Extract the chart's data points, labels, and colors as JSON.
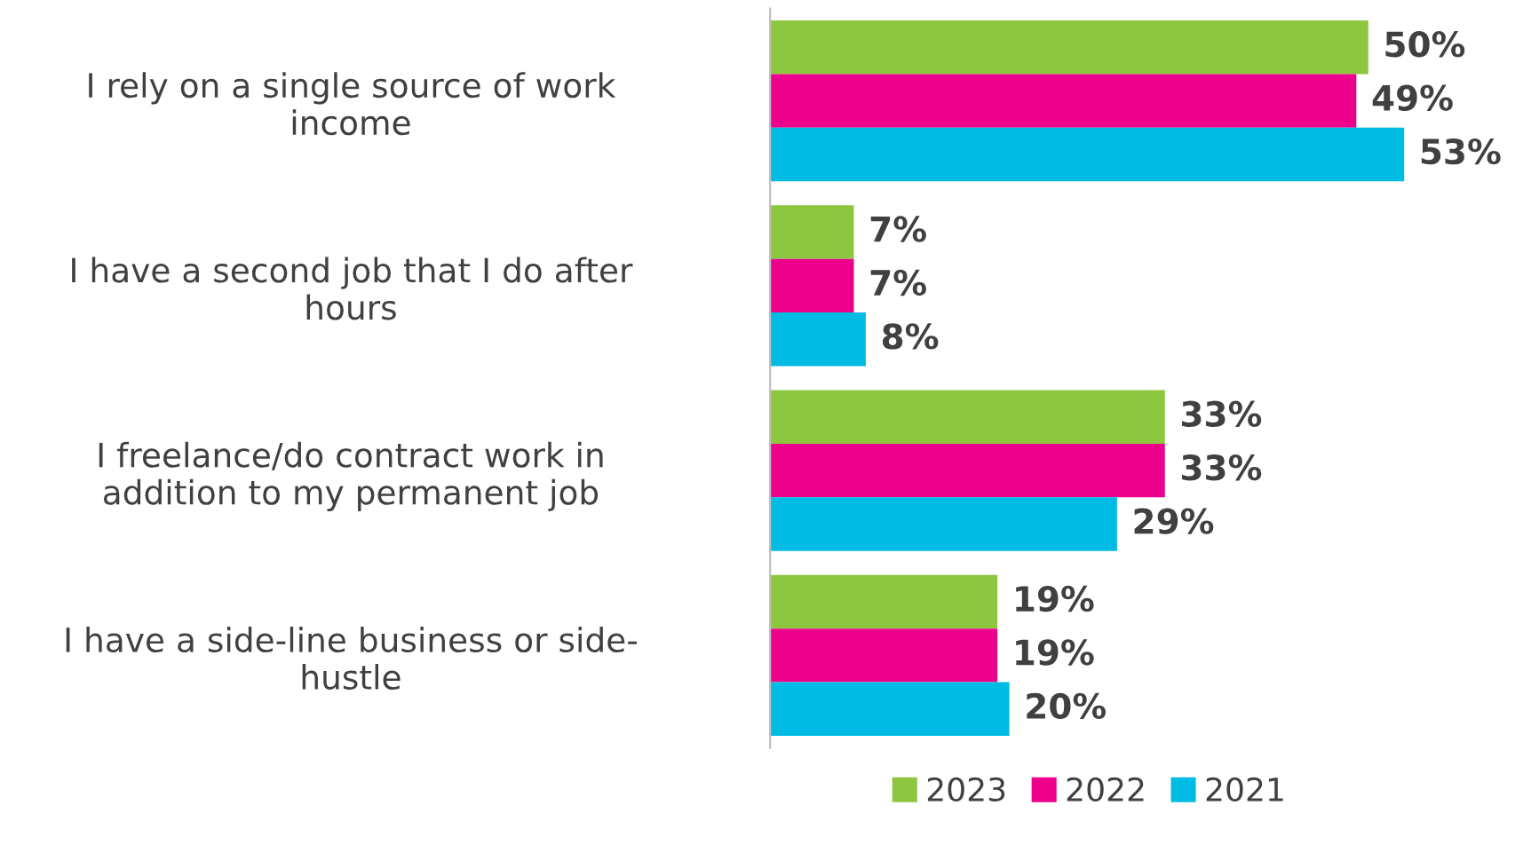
{
  "chart_data": {
    "type": "bar",
    "orientation": "horizontal",
    "categories": [
      "I rely on a single source of work\nincome",
      "I have a second job that I do after\nhours",
      "I freelance/do contract work in\naddition to my permanent job",
      "I have a side-line business or side-\nhustle"
    ],
    "series": [
      {
        "name": "2023",
        "color": "#8dc63f",
        "values": [
          50,
          7,
          33,
          19
        ],
        "value_labels": [
          "50%",
          "7%",
          "33%",
          "19%"
        ]
      },
      {
        "name": "2022",
        "color": "#ec008c",
        "values": [
          49,
          7,
          33,
          19
        ],
        "value_labels": [
          "49%",
          "7%",
          "33%",
          "19%"
        ]
      },
      {
        "name": "2021",
        "color": "#00bce4",
        "values": [
          53,
          8,
          29,
          20
        ],
        "value_labels": [
          "53%",
          "8%",
          "29%",
          "20%"
        ]
      }
    ],
    "legend": "bottom",
    "grid": false
  }
}
